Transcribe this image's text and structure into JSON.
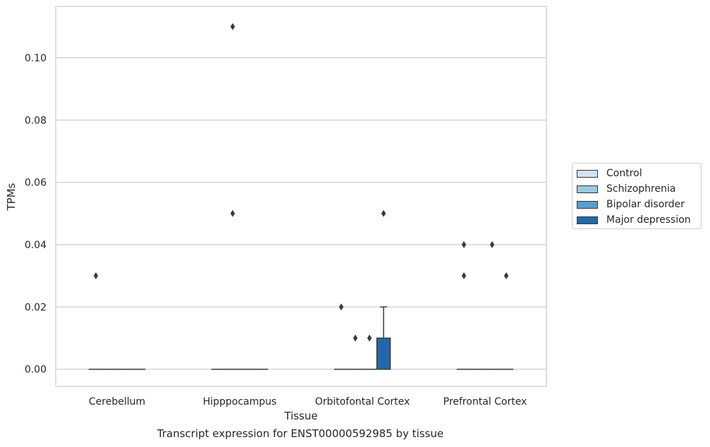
{
  "chart_data": {
    "type": "box",
    "title": "",
    "caption": "Transcript expression for ENST00000592985 by tissue",
    "xlabel": "Tissue",
    "ylabel": "TPMs",
    "ylim": [
      -0.0055,
      0.1165
    ],
    "yticks": [
      0.0,
      0.02,
      0.04,
      0.06,
      0.08,
      0.1
    ],
    "ytick_labels": [
      "0.00",
      "0.02",
      "0.04",
      "0.06",
      "0.08",
      "0.10"
    ],
    "grid": "horizontal",
    "legend_placement": "right, outside",
    "categories": [
      "Cerebellum",
      "Hipppocampus",
      "Orbitofontal Cortex",
      "Prefrontal Cortex"
    ],
    "series": [
      {
        "name": "Control",
        "color": "#d2e3f3",
        "boxes": [
          {
            "q1": 0,
            "median": 0,
            "q3": 0,
            "whisker_low": 0,
            "whisker_high": 0,
            "outliers": [
              0.03
            ]
          },
          {
            "q1": 0,
            "median": 0,
            "q3": 0,
            "whisker_low": 0,
            "whisker_high": 0,
            "outliers": []
          },
          {
            "q1": 0,
            "median": 0,
            "q3": 0,
            "whisker_low": 0,
            "whisker_high": 0,
            "outliers": [
              0.02
            ]
          },
          {
            "q1": 0,
            "median": 0,
            "q3": 0,
            "whisker_low": 0,
            "whisker_high": 0,
            "outliers": [
              0.03,
              0.04
            ]
          }
        ]
      },
      {
        "name": "Schizophrenia",
        "color": "#9ac8e0",
        "boxes": [
          {
            "q1": 0,
            "median": 0,
            "q3": 0,
            "whisker_low": 0,
            "whisker_high": 0,
            "outliers": []
          },
          {
            "q1": 0,
            "median": 0,
            "q3": 0,
            "whisker_low": 0,
            "whisker_high": 0,
            "outliers": [
              0.05,
              0.11
            ]
          },
          {
            "q1": 0,
            "median": 0,
            "q3": 0,
            "whisker_low": 0,
            "whisker_high": 0,
            "outliers": [
              0.01
            ]
          },
          {
            "q1": 0,
            "median": 0,
            "q3": 0,
            "whisker_low": 0,
            "whisker_high": 0,
            "outliers": []
          }
        ]
      },
      {
        "name": "Bipolar disorder",
        "color": "#5a9fcc",
        "boxes": [
          {
            "q1": 0,
            "median": 0,
            "q3": 0,
            "whisker_low": 0,
            "whisker_high": 0,
            "outliers": []
          },
          {
            "q1": 0,
            "median": 0,
            "q3": 0,
            "whisker_low": 0,
            "whisker_high": 0,
            "outliers": []
          },
          {
            "q1": 0,
            "median": 0,
            "q3": 0,
            "whisker_low": 0,
            "whisker_high": 0,
            "outliers": [
              0.01
            ]
          },
          {
            "q1": 0,
            "median": 0,
            "q3": 0,
            "whisker_low": 0,
            "whisker_high": 0,
            "outliers": [
              0.04
            ]
          }
        ]
      },
      {
        "name": "Major depression",
        "color": "#2468ab",
        "boxes": [
          {
            "q1": 0,
            "median": 0,
            "q3": 0,
            "whisker_low": 0,
            "whisker_high": 0,
            "outliers": []
          },
          {
            "q1": 0,
            "median": 0,
            "q3": 0,
            "whisker_low": 0,
            "whisker_high": 0,
            "outliers": []
          },
          {
            "q1": 0,
            "median": 0,
            "q3": 0.01,
            "whisker_low": 0,
            "whisker_high": 0.02,
            "outliers": [
              0.05
            ]
          },
          {
            "q1": 0,
            "median": 0,
            "q3": 0,
            "whisker_low": 0,
            "whisker_high": 0,
            "outliers": [
              0.03
            ]
          }
        ]
      }
    ]
  }
}
